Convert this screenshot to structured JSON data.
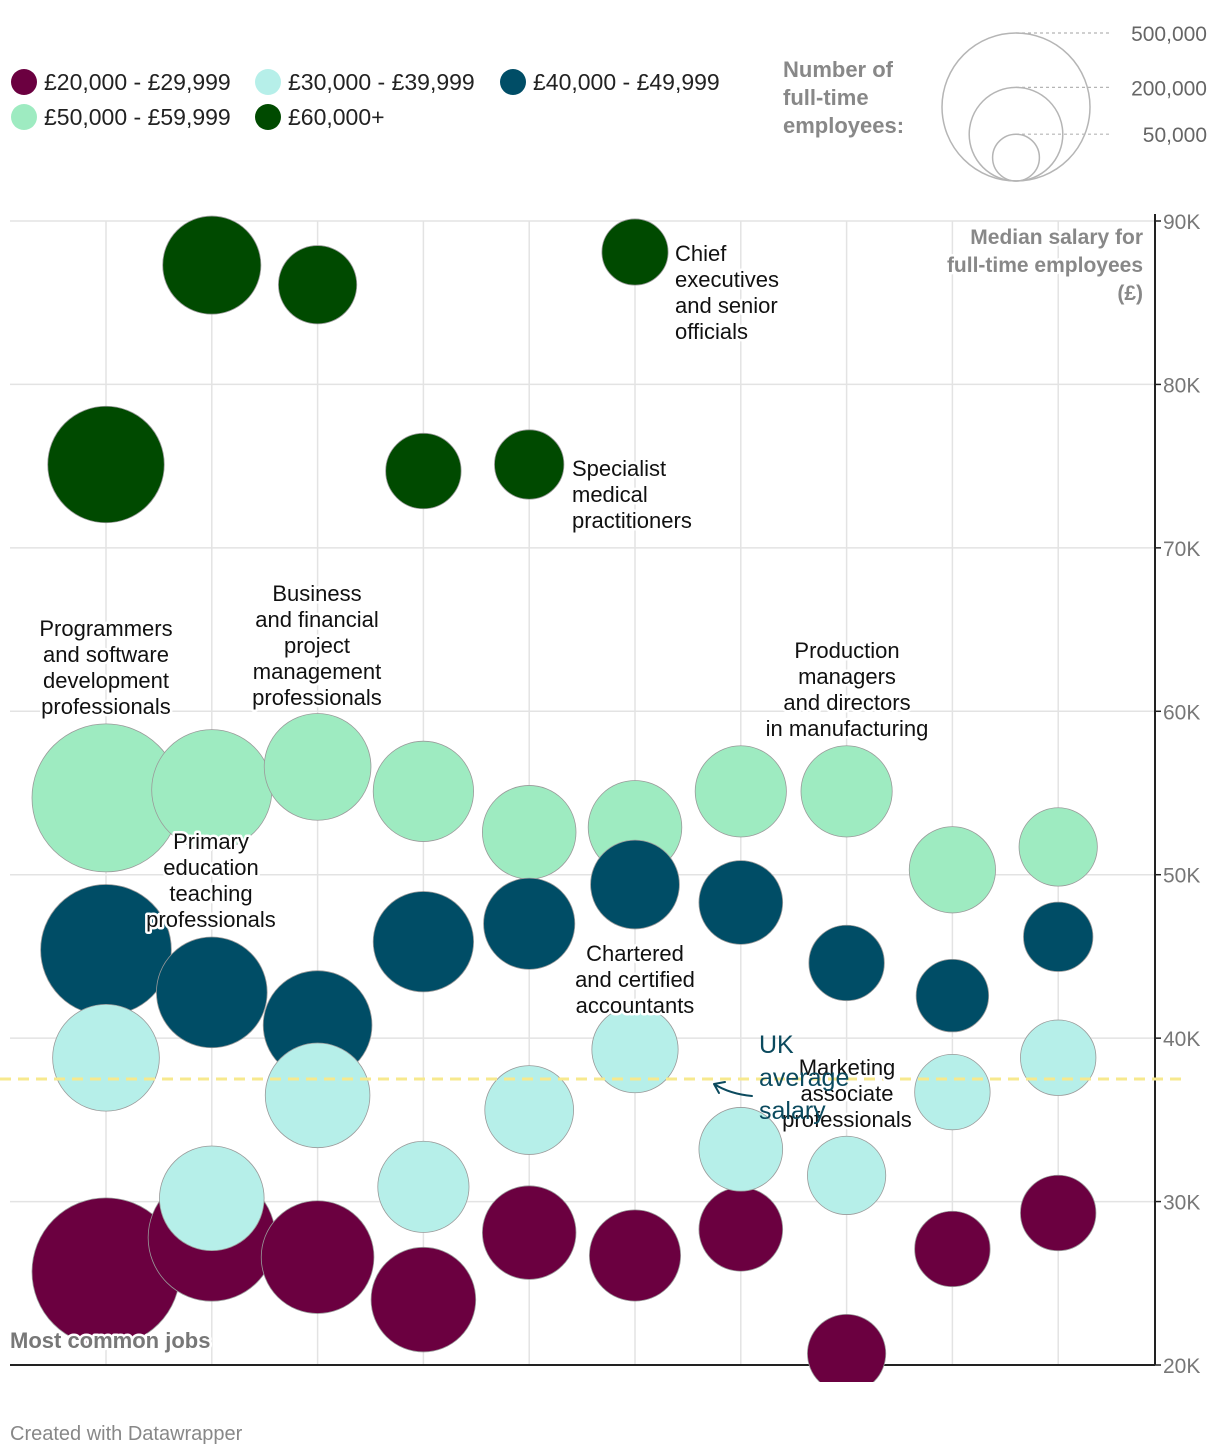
{
  "chart_data": {
    "type": "scatter",
    "title": "",
    "xlabel": "Most common jobs",
    "ylabel": "Median salary for full-time employees (£)",
    "ylabel_lines": [
      "Median salary for",
      "full-time employees",
      "(£)"
    ],
    "ylim": [
      20000,
      90000
    ],
    "y_ticks": [
      {
        "value": 20000,
        "label": "20K"
      },
      {
        "value": 30000,
        "label": "30K"
      },
      {
        "value": 40000,
        "label": "40K"
      },
      {
        "value": 50000,
        "label": "50K"
      },
      {
        "value": 60000,
        "label": "60K"
      },
      {
        "value": 70000,
        "label": "70K"
      },
      {
        "value": 80000,
        "label": "80K"
      },
      {
        "value": 90000,
        "label": "90K"
      }
    ],
    "job_columns": 10,
    "grid": true,
    "series": [
      {
        "name": "£20,000 - £29,999",
        "color": "#6b0040",
        "points": [
          {
            "job": 1,
            "salary": 25700,
            "employees": 500000
          },
          {
            "job": 2,
            "salary": 27800,
            "employees": 370000
          },
          {
            "job": 3,
            "salary": 26600,
            "employees": 290000
          },
          {
            "job": 4,
            "salary": 24000,
            "employees": 250000
          },
          {
            "job": 5,
            "salary": 28100,
            "employees": 200000
          },
          {
            "job": 6,
            "salary": 26700,
            "employees": 190000
          },
          {
            "job": 7,
            "salary": 28300,
            "employees": 160000
          },
          {
            "job": 8,
            "salary": 20700,
            "employees": 140000
          },
          {
            "job": 9,
            "salary": 27100,
            "employees": 130000
          },
          {
            "job": 10,
            "salary": 29300,
            "employees": 130000
          }
        ]
      },
      {
        "name": "£30,000 - £39,999",
        "color": "#b6efe9",
        "points": [
          {
            "job": 1,
            "salary": 38800,
            "employees": 260000
          },
          {
            "job": 2,
            "salary": 30200,
            "employees": 250000
          },
          {
            "job": 3,
            "salary": 36500,
            "employees": 250000
          },
          {
            "job": 4,
            "salary": 30900,
            "employees": 190000
          },
          {
            "job": 5,
            "salary": 35600,
            "employees": 180000
          },
          {
            "job": 6,
            "salary": 39300,
            "employees": 170000
          },
          {
            "job": 7,
            "salary": 33200,
            "employees": 160000
          },
          {
            "job": 8,
            "salary": 31600,
            "employees": 140000
          },
          {
            "job": 9,
            "salary": 36700,
            "employees": 130000
          },
          {
            "job": 10,
            "salary": 38800,
            "employees": 130000
          }
        ]
      },
      {
        "name": "£40,000 - £49,999",
        "color": "#004d66",
        "points": [
          {
            "job": 1,
            "salary": 45400,
            "employees": 390000
          },
          {
            "job": 2,
            "salary": 42800,
            "employees": 280000
          },
          {
            "job": 3,
            "salary": 40800,
            "employees": 270000
          },
          {
            "job": 4,
            "salary": 45900,
            "employees": 230000
          },
          {
            "job": 5,
            "salary": 47000,
            "employees": 190000
          },
          {
            "job": 6,
            "salary": 49400,
            "employees": 180000
          },
          {
            "job": 7,
            "salary": 48300,
            "employees": 160000
          },
          {
            "job": 8,
            "salary": 44600,
            "employees": 130000
          },
          {
            "job": 9,
            "salary": 42600,
            "employees": 120000
          },
          {
            "job": 10,
            "salary": 46200,
            "employees": 110000
          }
        ]
      },
      {
        "name": "£50,000 - £59,999",
        "color": "#9eebc1",
        "points": [
          {
            "job": 1,
            "salary": 54700,
            "employees": 500000
          },
          {
            "job": 2,
            "salary": 55200,
            "employees": 330000
          },
          {
            "job": 3,
            "salary": 56600,
            "employees": 260000
          },
          {
            "job": 4,
            "salary": 55100,
            "employees": 230000
          },
          {
            "job": 5,
            "salary": 52600,
            "employees": 200000
          },
          {
            "job": 6,
            "salary": 52900,
            "employees": 200000
          },
          {
            "job": 7,
            "salary": 55100,
            "employees": 190000
          },
          {
            "job": 8,
            "salary": 55100,
            "employees": 190000
          },
          {
            "job": 9,
            "salary": 50300,
            "employees": 170000
          },
          {
            "job": 10,
            "salary": 51700,
            "employees": 140000
          }
        ]
      },
      {
        "name": "£60,000+",
        "color": "#004a00",
        "points": [
          {
            "job": 1,
            "salary": 75100,
            "employees": 310000
          },
          {
            "job": 2,
            "salary": 87300,
            "employees": 220000
          },
          {
            "job": 3,
            "salary": 86100,
            "employees": 140000
          },
          {
            "job": 4,
            "salary": 74700,
            "employees": 130000
          },
          {
            "job": 5,
            "salary": 75100,
            "employees": 110000
          },
          {
            "job": 6,
            "salary": 88100,
            "employees": 100000
          }
        ]
      }
    ],
    "reference_line": {
      "value": 37500,
      "label": "UK average salary",
      "label_lines": [
        "UK",
        "average",
        "salary"
      ],
      "color": "#f7e98e"
    },
    "size_legend": {
      "title_lines": [
        "Number of",
        "full-time",
        "employees:"
      ],
      "entries": [
        {
          "value": 500000,
          "label": "500,000"
        },
        {
          "value": 200000,
          "label": "200,000"
        },
        {
          "value": 50000,
          "label": "50,000"
        }
      ]
    },
    "annotations": [
      {
        "id": "chief",
        "lines": [
          "Chief",
          "executives",
          "and senior",
          "officials"
        ]
      },
      {
        "id": "medical",
        "lines": [
          "Specialist",
          "medical",
          "practitioners"
        ]
      },
      {
        "id": "programmers",
        "lines": [
          "Programmers",
          "and software",
          "development",
          "professionals"
        ]
      },
      {
        "id": "business",
        "lines": [
          "Business",
          "and financial",
          "project",
          "management",
          "professionals"
        ]
      },
      {
        "id": "production",
        "lines": [
          "Production",
          "managers",
          "and directors",
          "in manufacturing"
        ]
      },
      {
        "id": "primary",
        "lines": [
          "Primary",
          "education",
          "teaching",
          "professionals"
        ]
      },
      {
        "id": "accountants",
        "lines": [
          "Chartered",
          "and certified",
          "accountants"
        ]
      },
      {
        "id": "marketing",
        "lines": [
          "Marketing",
          "associate",
          "professionals"
        ]
      }
    ]
  },
  "footer": {
    "credit": "Created with Datawrapper"
  }
}
